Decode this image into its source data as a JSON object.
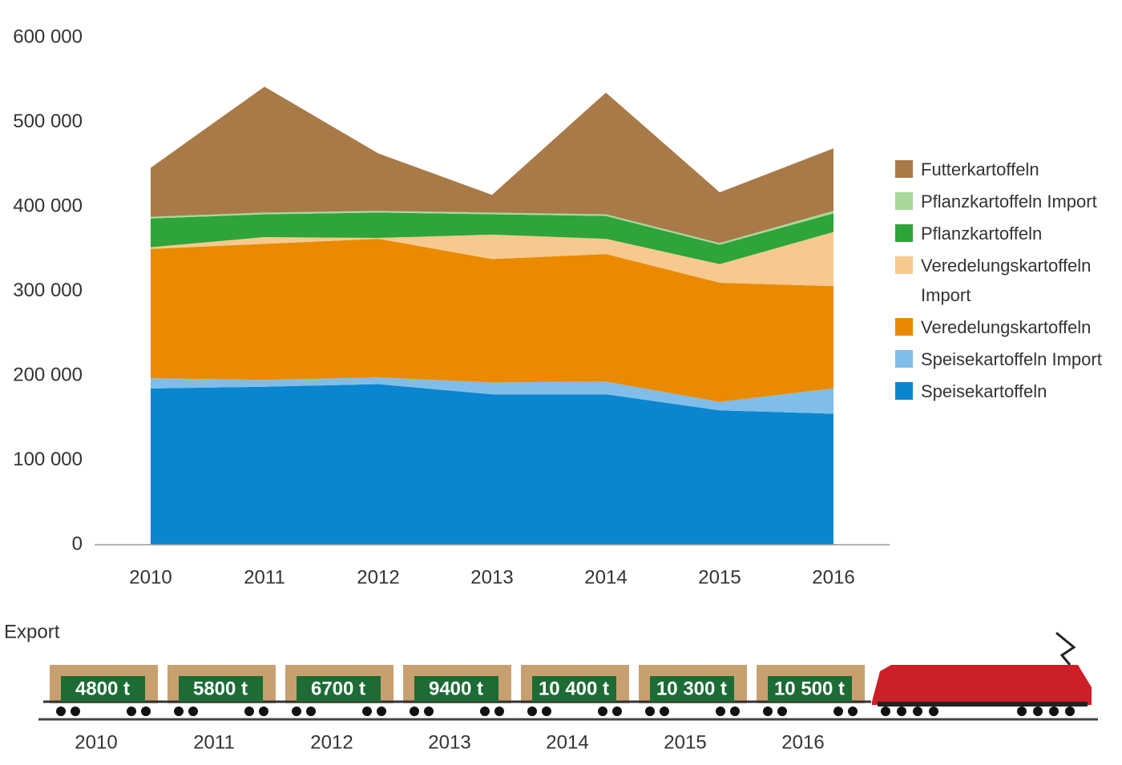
{
  "chart_data": [
    {
      "type": "area",
      "categories": [
        "2010",
        "2011",
        "2012",
        "2013",
        "2014",
        "2015",
        "2016"
      ],
      "ylim": [
        0,
        600000
      ],
      "yticks": [
        {
          "value": 0,
          "label": "0"
        },
        {
          "value": 100000,
          "label": "100 000"
        },
        {
          "value": 200000,
          "label": "200 000"
        },
        {
          "value": 300000,
          "label": "300 000"
        },
        {
          "value": 400000,
          "label": "400 000"
        },
        {
          "value": 500000,
          "label": "500 000"
        },
        {
          "value": 600000,
          "label": "600 000"
        }
      ],
      "stacked": true,
      "series": [
        {
          "name": "Speisekartoffeln",
          "color": "#0a86d0",
          "values": [
            185000,
            187000,
            190000,
            178000,
            178000,
            159000,
            155000
          ]
        },
        {
          "name": "Speisekartoffeln Import",
          "color": "#80bde8",
          "values": [
            12000,
            8000,
            8000,
            14000,
            15000,
            10000,
            30000
          ]
        },
        {
          "name": "Veredelungskartoffeln",
          "color": "#ea8a00",
          "values": [
            153000,
            161000,
            164000,
            146000,
            151000,
            141000,
            121000
          ]
        },
        {
          "name": "Veredelungskartoffeln Import",
          "color": "#f6c98e",
          "values": [
            2000,
            8000,
            1000,
            29000,
            18000,
            22000,
            64000
          ]
        },
        {
          "name": "Pflanzkartoffeln",
          "color": "#2ea43a",
          "values": [
            34000,
            27000,
            30000,
            24000,
            27000,
            23000,
            22000
          ]
        },
        {
          "name": "Pflanzkartoffeln Import",
          "color": "#a8d89a",
          "values": [
            2000,
            2000,
            2000,
            2000,
            2000,
            2000,
            3000
          ]
        },
        {
          "name": "Futterkartoffeln",
          "color": "#a87a48",
          "values": [
            58000,
            149000,
            68000,
            21000,
            144000,
            60000,
            74000
          ]
        }
      ]
    },
    {
      "type": "train",
      "title": "Export",
      "categories": [
        "2010",
        "2011",
        "2012",
        "2013",
        "2014",
        "2015",
        "2016"
      ],
      "values": [
        4800,
        5800,
        6700,
        9400,
        10400,
        10300,
        10500
      ],
      "value_labels": [
        "4800 t",
        "5800 t",
        "6700 t",
        "9400 t",
        "10 400 t",
        "10 300 t",
        "10 500 t"
      ],
      "color": "#c8a070"
    }
  ]
}
